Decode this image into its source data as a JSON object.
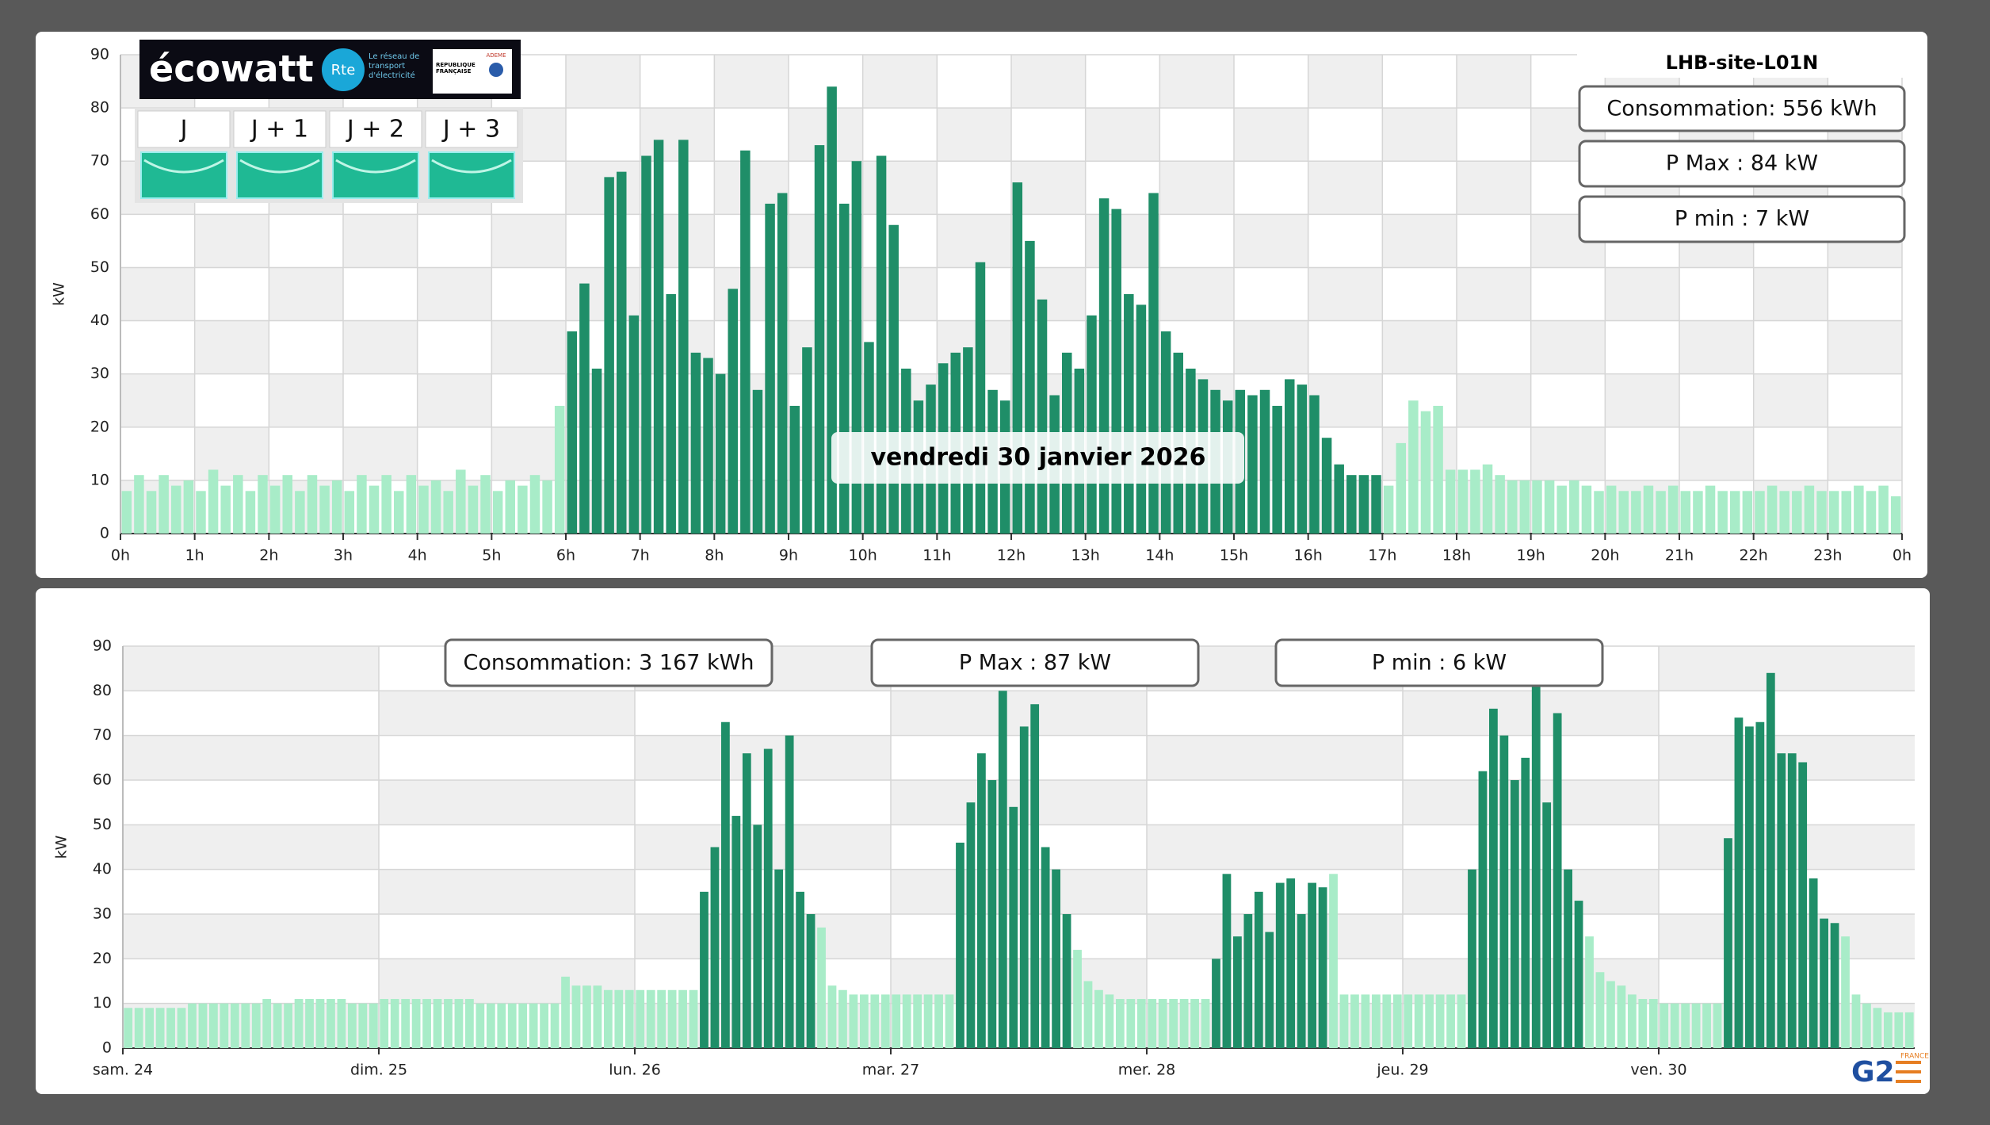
{
  "ecowatt": {
    "brand": "écowatt",
    "rte": "Rte",
    "rte_tagline": "Le réseau de transport d'électricité",
    "republic": "RÉPUBLIQUE FRANÇAISE",
    "ademe": "ADEME",
    "days": [
      "J",
      "J + 1",
      "J + 2",
      "J + 3"
    ]
  },
  "logo": {
    "text": "G2",
    "country": "FRANCE"
  },
  "chart_data": [
    {
      "type": "bar",
      "site": "LHB-site-L01N",
      "stats": [
        "Consommation: 556 kWh",
        "P Max :  84 kW",
        "P min : 7 kW"
      ],
      "tooltip": "vendredi 30 janvier 2026",
      "y_label": "kW",
      "color": "#a8ecc8",
      "highlight": {
        "color": "#1f8e68",
        "spans": [
          [
            360,
            1020
          ]
        ]
      },
      "grid": true,
      "xlim": [
        0,
        1440
      ],
      "ylim": [
        0,
        90
      ],
      "yticks": [
        0,
        10,
        20,
        30,
        40,
        50,
        60,
        70,
        80,
        90
      ],
      "xticks": [
        {
          "value": 0,
          "label": "0h"
        },
        {
          "value": 60,
          "label": "1h"
        },
        {
          "value": 120,
          "label": "2h"
        },
        {
          "value": 180,
          "label": "3h"
        },
        {
          "value": 240,
          "label": "4h"
        },
        {
          "value": 300,
          "label": "5h"
        },
        {
          "value": 360,
          "label": "6h"
        },
        {
          "value": 420,
          "label": "7h"
        },
        {
          "value": 480,
          "label": "8h"
        },
        {
          "value": 540,
          "label": "9h"
        },
        {
          "value": 600,
          "label": "10h"
        },
        {
          "value": 660,
          "label": "11h"
        },
        {
          "value": 720,
          "label": "12h"
        },
        {
          "value": 780,
          "label": "13h"
        },
        {
          "value": 840,
          "label": "14h"
        },
        {
          "value": 900,
          "label": "15h"
        },
        {
          "value": 960,
          "label": "16h"
        },
        {
          "value": 1020,
          "label": "17h"
        },
        {
          "value": 1080,
          "label": "18h"
        },
        {
          "value": 1140,
          "label": "19h"
        },
        {
          "value": 1200,
          "label": "20h"
        },
        {
          "value": 1260,
          "label": "21h"
        },
        {
          "value": 1320,
          "label": "22h"
        },
        {
          "value": 1380,
          "label": "23h"
        },
        {
          "value": 1440,
          "label": "0h"
        }
      ],
      "x": [
        0,
        10,
        20,
        30,
        40,
        50,
        60,
        70,
        80,
        90,
        100,
        110,
        120,
        130,
        140,
        150,
        160,
        170,
        180,
        190,
        200,
        210,
        220,
        230,
        240,
        250,
        260,
        270,
        280,
        290,
        300,
        310,
        320,
        330,
        340,
        350,
        360,
        370,
        380,
        390,
        400,
        410,
        420,
        430,
        440,
        450,
        460,
        470,
        480,
        490,
        500,
        510,
        520,
        530,
        540,
        550,
        560,
        570,
        580,
        590,
        600,
        610,
        620,
        630,
        640,
        650,
        660,
        670,
        680,
        690,
        700,
        710,
        720,
        730,
        740,
        750,
        760,
        770,
        780,
        790,
        800,
        810,
        820,
        830,
        840,
        850,
        860,
        870,
        880,
        890,
        900,
        910,
        920,
        930,
        940,
        950,
        960,
        970,
        980,
        990,
        1000,
        1010,
        1020,
        1030,
        1040,
        1050,
        1060,
        1070,
        1080,
        1090,
        1100,
        1110,
        1120,
        1130,
        1140,
        1150,
        1160,
        1170,
        1180,
        1190,
        1200,
        1210,
        1220,
        1230,
        1240,
        1250,
        1260,
        1270,
        1280,
        1290,
        1300,
        1310,
        1320,
        1330,
        1340,
        1350,
        1360,
        1370,
        1380,
        1390,
        1400,
        1410,
        1420,
        1430
      ],
      "values": [
        8,
        11,
        8,
        11,
        9,
        10,
        8,
        12,
        9,
        11,
        8,
        11,
        9,
        11,
        8,
        11,
        9,
        10,
        8,
        11,
        9,
        11,
        8,
        11,
        9,
        10,
        8,
        12,
        9,
        11,
        8,
        10,
        9,
        11,
        10,
        24,
        38,
        47,
        31,
        67,
        68,
        41,
        71,
        74,
        45,
        74,
        34,
        33,
        30,
        46,
        72,
        27,
        62,
        64,
        24,
        35,
        73,
        84,
        62,
        70,
        36,
        71,
        58,
        31,
        25,
        28,
        32,
        34,
        35,
        51,
        27,
        25,
        66,
        55,
        44,
        26,
        34,
        31,
        41,
        63,
        61,
        45,
        43,
        64,
        38,
        34,
        31,
        29,
        27,
        25,
        27,
        26,
        27,
        24,
        29,
        28,
        26,
        18,
        13,
        11,
        11,
        11,
        9,
        17,
        25,
        23,
        24,
        12,
        12,
        12,
        13,
        11,
        10,
        10,
        10,
        10,
        9,
        10,
        9,
        8,
        9,
        8,
        8,
        9,
        8,
        9,
        8,
        8,
        9,
        8,
        8,
        8,
        8,
        9,
        8,
        8,
        9,
        8,
        8,
        8,
        9,
        8,
        9,
        7
      ]
    },
    {
      "type": "bar",
      "stats": [
        "Consommation: 3 167 kWh",
        "P Max :  87 kW",
        "P min : 6 kW"
      ],
      "y_label": "kW",
      "color": "#a8ecc8",
      "highlight": {
        "color": "#1f8e68",
        "spans": [
          [
            54,
            65
          ],
          [
            78,
            89
          ],
          [
            102,
            113
          ],
          [
            126,
            137
          ],
          [
            150,
            161
          ]
        ]
      },
      "grid": true,
      "xlim": [
        0,
        168
      ],
      "ylim": [
        0,
        90
      ],
      "yticks": [
        0,
        10,
        20,
        30,
        40,
        50,
        60,
        70,
        80,
        90
      ],
      "xticks": [
        {
          "value": 0,
          "label": "sam. 24"
        },
        {
          "value": 24,
          "label": "dim. 25"
        },
        {
          "value": 48,
          "label": "lun. 26"
        },
        {
          "value": 72,
          "label": "mar. 27"
        },
        {
          "value": 96,
          "label": "mer. 28"
        },
        {
          "value": 120,
          "label": "jeu. 29"
        },
        {
          "value": 144,
          "label": "ven. 30"
        }
      ],
      "x": [
        0,
        1,
        2,
        3,
        4,
        5,
        6,
        7,
        8,
        9,
        10,
        11,
        12,
        13,
        14,
        15,
        16,
        17,
        18,
        19,
        20,
        21,
        22,
        23,
        24,
        25,
        26,
        27,
        28,
        29,
        30,
        31,
        32,
        33,
        34,
        35,
        36,
        37,
        38,
        39,
        40,
        41,
        42,
        43,
        44,
        45,
        46,
        47,
        48,
        49,
        50,
        51,
        52,
        53,
        54,
        55,
        56,
        57,
        58,
        59,
        60,
        61,
        62,
        63,
        64,
        65,
        66,
        67,
        68,
        69,
        70,
        71,
        72,
        73,
        74,
        75,
        76,
        77,
        78,
        79,
        80,
        81,
        82,
        83,
        84,
        85,
        86,
        87,
        88,
        89,
        90,
        91,
        92,
        93,
        94,
        95,
        96,
        97,
        98,
        99,
        100,
        101,
        102,
        103,
        104,
        105,
        106,
        107,
        108,
        109,
        110,
        111,
        112,
        113,
        114,
        115,
        116,
        117,
        118,
        119,
        120,
        121,
        122,
        123,
        124,
        125,
        126,
        127,
        128,
        129,
        130,
        131,
        132,
        133,
        134,
        135,
        136,
        137,
        138,
        139,
        140,
        141,
        142,
        143,
        144,
        145,
        146,
        147,
        148,
        149,
        150,
        151,
        152,
        153,
        154,
        155,
        156,
        157,
        158,
        159,
        160,
        161,
        162,
        163,
        164,
        165,
        166,
        167
      ],
      "values": [
        9,
        9,
        9,
        9,
        9,
        9,
        10,
        10,
        10,
        10,
        10,
        10,
        10,
        11,
        10,
        10,
        11,
        11,
        11,
        11,
        11,
        10,
        10,
        10,
        11,
        11,
        11,
        11,
        11,
        11,
        11,
        11,
        11,
        10,
        10,
        10,
        10,
        10,
        10,
        10,
        10,
        16,
        14,
        14,
        14,
        13,
        13,
        13,
        13,
        13,
        13,
        13,
        13,
        13,
        35,
        45,
        73,
        52,
        66,
        50,
        67,
        40,
        70,
        35,
        30,
        27,
        14,
        13,
        12,
        12,
        12,
        12,
        12,
        12,
        12,
        12,
        12,
        12,
        46,
        55,
        66,
        60,
        80,
        54,
        72,
        77,
        45,
        40,
        30,
        22,
        15,
        13,
        12,
        11,
        11,
        11,
        11,
        11,
        11,
        11,
        11,
        11,
        20,
        39,
        25,
        30,
        35,
        26,
        37,
        38,
        30,
        37,
        36,
        39,
        12,
        12,
        12,
        12,
        12,
        12,
        12,
        12,
        12,
        12,
        12,
        12,
        40,
        62,
        76,
        70,
        60,
        65,
        81,
        55,
        75,
        40,
        33,
        25,
        17,
        15,
        14,
        12,
        11,
        11,
        10,
        10,
        10,
        10,
        10,
        10,
        47,
        74,
        72,
        73,
        84,
        66,
        66,
        64,
        38,
        29,
        28,
        25,
        12,
        10,
        9,
        8,
        8,
        8
      ]
    }
  ]
}
